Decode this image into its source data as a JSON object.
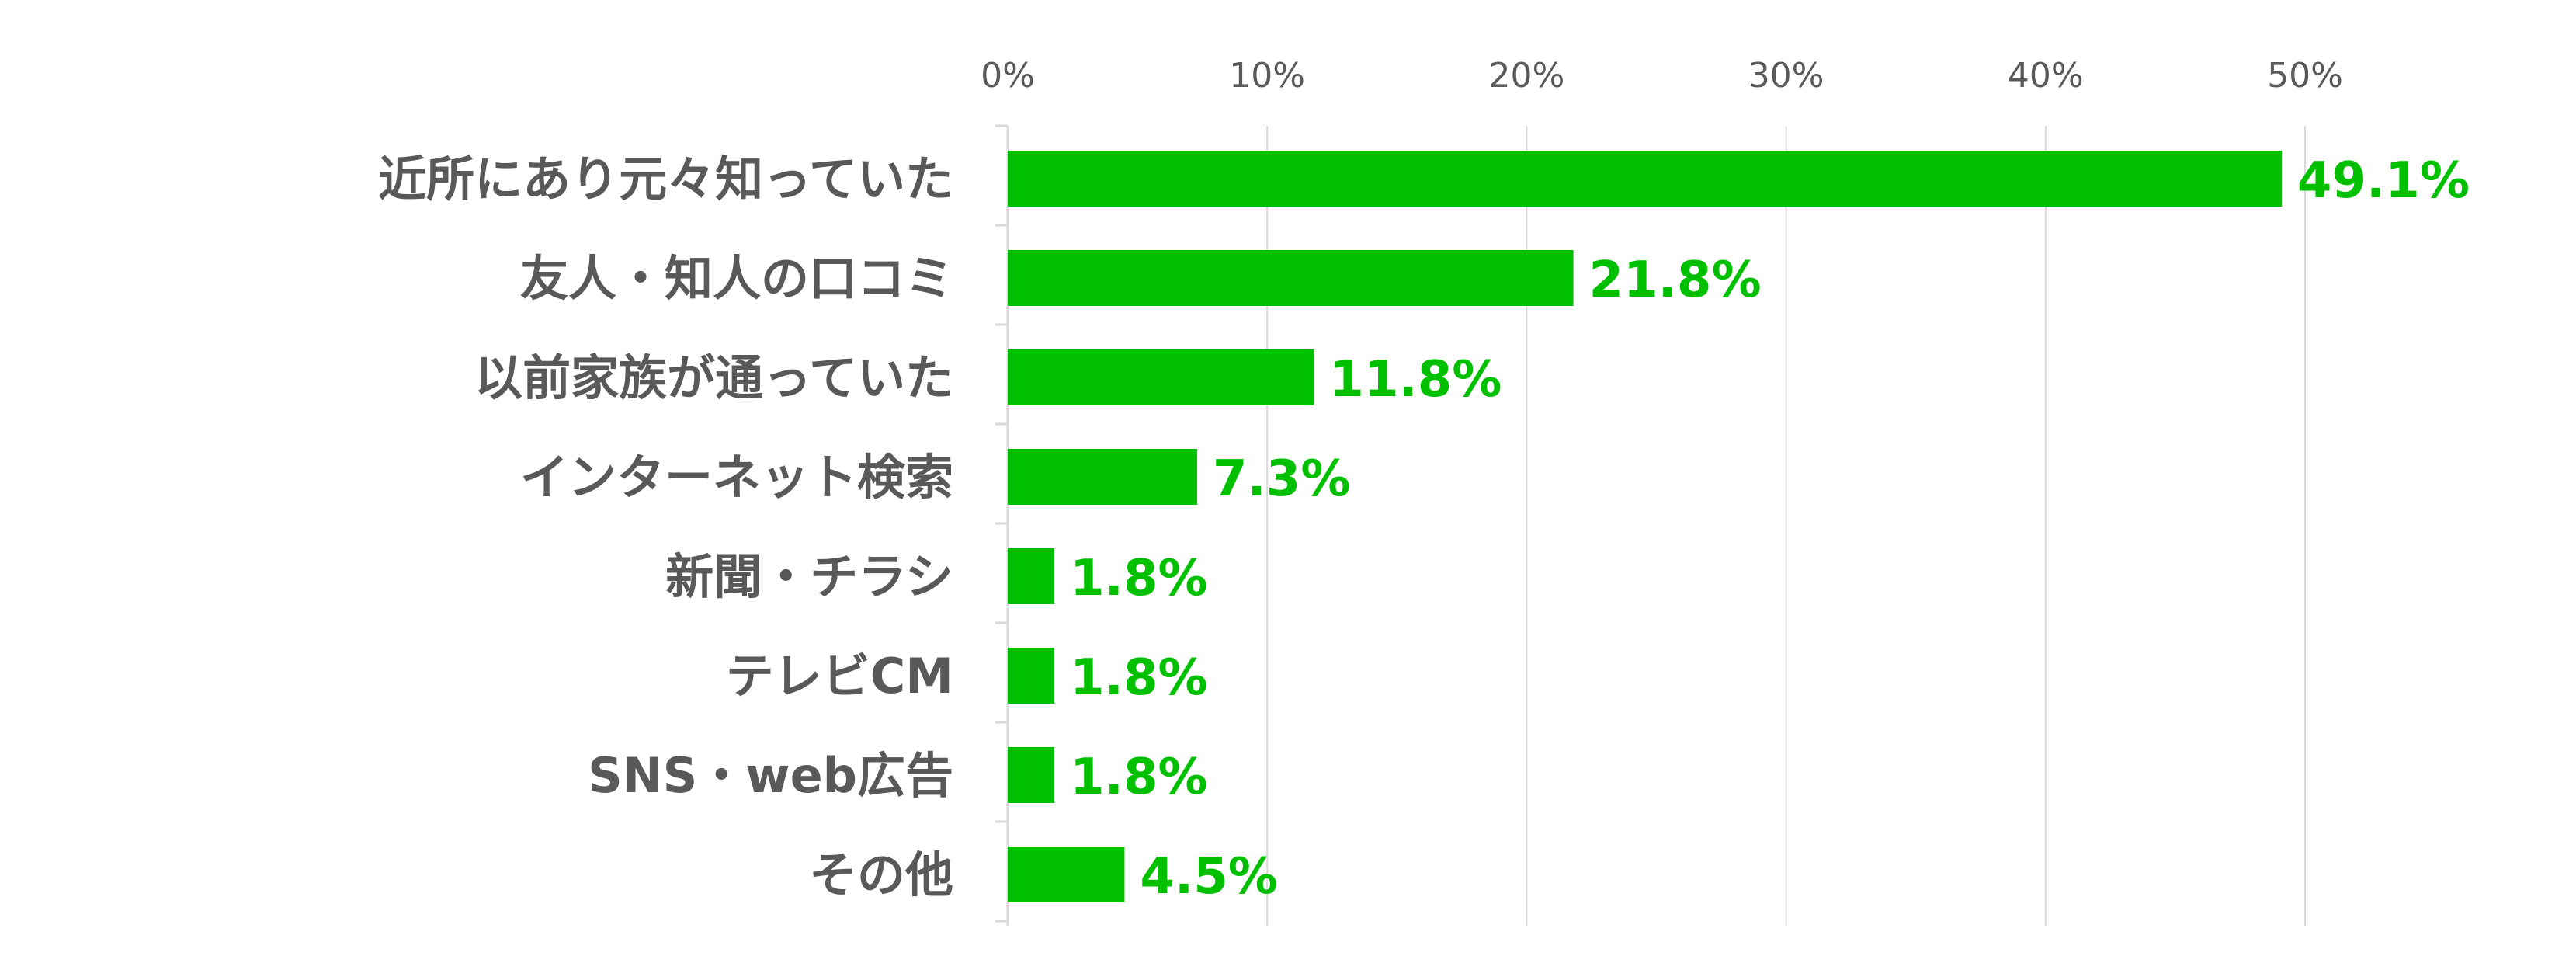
{
  "chart_data": {
    "type": "bar",
    "orientation": "horizontal",
    "x_axis_position": "top",
    "grid": true,
    "xlim": [
      0,
      55
    ],
    "ticks": [
      0,
      10,
      20,
      30,
      40,
      50
    ],
    "tick_labels": [
      "0%",
      "10%",
      "20%",
      "30%",
      "40%",
      "50%"
    ],
    "categories": [
      "近所にあり元々知っていた",
      "友人・知人の口コミ",
      "以前家族が通っていた",
      "インターネット検索",
      "新聞・チラシ",
      "テレビCM",
      "SNS・web広告",
      "その他"
    ],
    "values": [
      49.1,
      21.8,
      11.8,
      7.3,
      1.8,
      1.8,
      1.8,
      4.5
    ],
    "data_labels": [
      "49.1%",
      "21.8%",
      "11.8%",
      "7.3%",
      "1.8%",
      "1.8%",
      "1.8%",
      "4.5%"
    ],
    "colors": {
      "bar": "#00C000",
      "data_label": "#00C000",
      "category_label": "#595959",
      "tick_label": "#595959",
      "grid": "#D9D9D9"
    }
  }
}
